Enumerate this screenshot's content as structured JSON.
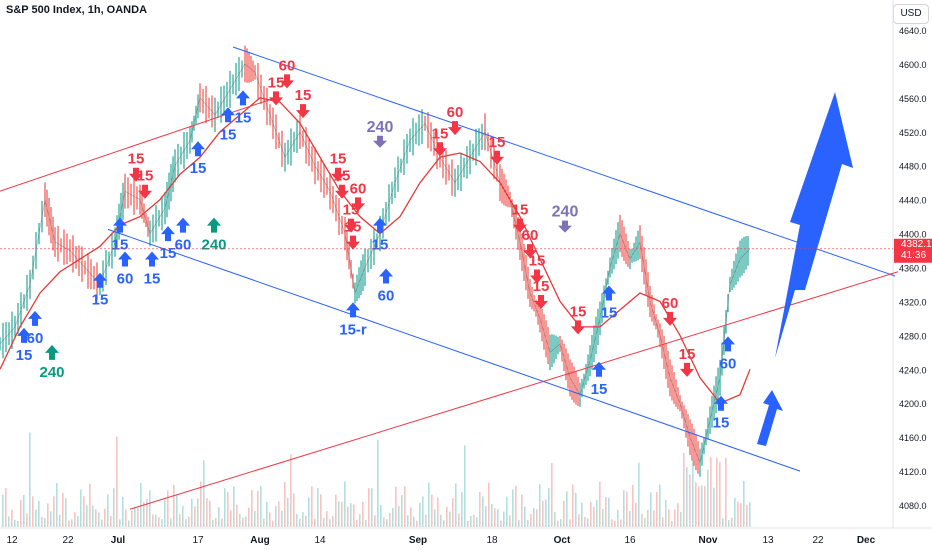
{
  "header": {
    "title": "S&P 500 Index, 1h, OANDA",
    "currency": "USD"
  },
  "price_tag": {
    "price": "4382.1",
    "countdown": "41:36",
    "color": "#f23645"
  },
  "colors": {
    "blue_channel": "#2962ff",
    "red_line": "#f23645",
    "red_ma": "#e53935",
    "up_arrow": "#2962ff",
    "down_arrow": "#f23645",
    "teal_arrow": "#089981",
    "gray_arrow": "#7e72b5",
    "candle_up": "#26a69a",
    "candle_down": "#ef5350"
  },
  "chart_data": {
    "type": "line",
    "title": "S&P 500 Index, 1h, OANDA",
    "ylim": [
      4060,
      4640
    ],
    "y_ticks": [
      4080,
      4120,
      4160,
      4200,
      4240,
      4280,
      4320,
      4360,
      4400,
      4440,
      4480,
      4520,
      4560,
      4600,
      4640
    ],
    "x_ticks": [
      "12",
      "22",
      "Jul",
      "17",
      "Aug",
      "14",
      "Sep",
      "18",
      "Oct",
      "16",
      "Nov",
      "13",
      "22",
      "Dec"
    ],
    "x_tick_pos": [
      12,
      68,
      118,
      198,
      260,
      320,
      418,
      492,
      562,
      630,
      708,
      768,
      818,
      866
    ],
    "price": [
      [
        0,
        4270
      ],
      [
        15,
        4290
      ],
      [
        30,
        4340
      ],
      [
        45,
        4440
      ],
      [
        55,
        4390
      ],
      [
        70,
        4380
      ],
      [
        85,
        4360
      ],
      [
        100,
        4340
      ],
      [
        115,
        4390
      ],
      [
        125,
        4450
      ],
      [
        140,
        4440
      ],
      [
        150,
        4400
      ],
      [
        165,
        4430
      ],
      [
        175,
        4480
      ],
      [
        190,
        4510
      ],
      [
        200,
        4560
      ],
      [
        215,
        4540
      ],
      [
        230,
        4570
      ],
      [
        245,
        4600
      ],
      [
        255,
        4590
      ],
      [
        270,
        4540
      ],
      [
        285,
        4490
      ],
      [
        300,
        4520
      ],
      [
        315,
        4480
      ],
      [
        330,
        4450
      ],
      [
        345,
        4400
      ],
      [
        355,
        4330
      ],
      [
        365,
        4360
      ],
      [
        380,
        4400
      ],
      [
        395,
        4460
      ],
      [
        410,
        4510
      ],
      [
        425,
        4530
      ],
      [
        440,
        4490
      ],
      [
        455,
        4460
      ],
      [
        470,
        4490
      ],
      [
        485,
        4520
      ],
      [
        500,
        4460
      ],
      [
        510,
        4440
      ],
      [
        520,
        4390
      ],
      [
        530,
        4330
      ],
      [
        540,
        4300
      ],
      [
        550,
        4260
      ],
      [
        560,
        4270
      ],
      [
        570,
        4230
      ],
      [
        580,
        4210
      ],
      [
        590,
        4250
      ],
      [
        600,
        4300
      ],
      [
        610,
        4360
      ],
      [
        620,
        4400
      ],
      [
        630,
        4370
      ],
      [
        640,
        4390
      ],
      [
        650,
        4320
      ],
      [
        660,
        4280
      ],
      [
        670,
        4230
      ],
      [
        680,
        4200
      ],
      [
        690,
        4160
      ],
      [
        700,
        4130
      ],
      [
        710,
        4180
      ],
      [
        720,
        4230
      ],
      [
        730,
        4340
      ],
      [
        740,
        4370
      ],
      [
        750,
        4382
      ]
    ],
    "moving_average": [
      [
        0,
        4240
      ],
      [
        20,
        4290
      ],
      [
        40,
        4330
      ],
      [
        60,
        4355
      ],
      [
        80,
        4370
      ],
      [
        100,
        4385
      ],
      [
        120,
        4410
      ],
      [
        140,
        4420
      ],
      [
        160,
        4440
      ],
      [
        180,
        4470
      ],
      [
        200,
        4490
      ],
      [
        220,
        4520
      ],
      [
        240,
        4540
      ],
      [
        260,
        4560
      ],
      [
        280,
        4555
      ],
      [
        300,
        4530
      ],
      [
        320,
        4490
      ],
      [
        340,
        4450
      ],
      [
        360,
        4420
      ],
      [
        380,
        4400
      ],
      [
        400,
        4420
      ],
      [
        420,
        4460
      ],
      [
        440,
        4490
      ],
      [
        460,
        4495
      ],
      [
        480,
        4485
      ],
      [
        500,
        4460
      ],
      [
        520,
        4420
      ],
      [
        540,
        4370
      ],
      [
        560,
        4320
      ],
      [
        580,
        4290
      ],
      [
        600,
        4290
      ],
      [
        620,
        4310
      ],
      [
        640,
        4330
      ],
      [
        660,
        4320
      ],
      [
        680,
        4280
      ],
      [
        700,
        4230
      ],
      [
        720,
        4200
      ],
      [
        740,
        4210
      ],
      [
        750,
        4240
      ]
    ],
    "lines": [
      {
        "name": "",
        "color": "blue",
        "points": [
          [
            233,
            4620
          ],
          [
            895,
            4350
          ]
        ]
      },
      {
        "name": "",
        "color": "blue",
        "points": [
          [
            108,
            4405
          ],
          [
            800,
            4120
          ]
        ]
      },
      {
        "name": "",
        "color": "red",
        "points": [
          [
            0,
            4450
          ],
          [
            275,
            4560
          ]
        ]
      },
      {
        "name": "",
        "color": "red",
        "points": [
          [
            130,
            4075
          ],
          [
            898,
            4355
          ]
        ]
      }
    ],
    "annotations": [
      {
        "text": "60",
        "type": "down",
        "x": 287,
        "y": 4590
      },
      {
        "text": "15",
        "type": "down",
        "x": 276,
        "y": 4570
      },
      {
        "text": "15",
        "type": "down",
        "x": 303,
        "y": 4555
      },
      {
        "text": "240",
        "type": "gray",
        "x": 380,
        "y": 4520
      },
      {
        "text": "60",
        "type": "down",
        "x": 455,
        "y": 4535
      },
      {
        "text": "15",
        "type": "down",
        "x": 440,
        "y": 4510
      },
      {
        "text": "15",
        "type": "down",
        "x": 497,
        "y": 4500
      },
      {
        "text": "15",
        "type": "down",
        "x": 338,
        "y": 4480
      },
      {
        "text": "15",
        "type": "down",
        "x": 342,
        "y": 4460
      },
      {
        "text": "60",
        "type": "down",
        "x": 358,
        "y": 4445
      },
      {
        "text": "15",
        "type": "down",
        "x": 351,
        "y": 4420
      },
      {
        "text": "15",
        "type": "down",
        "x": 353,
        "y": 4400
      },
      {
        "text": "240",
        "type": "gray",
        "x": 565,
        "y": 4420
      },
      {
        "text": "15",
        "type": "down",
        "x": 520,
        "y": 4420
      },
      {
        "text": "60",
        "type": "down",
        "x": 530,
        "y": 4390
      },
      {
        "text": "15",
        "type": "down",
        "x": 537,
        "y": 4360
      },
      {
        "text": "15",
        "type": "down",
        "x": 541,
        "y": 4330
      },
      {
        "text": "15",
        "type": "down",
        "x": 578,
        "y": 4300
      },
      {
        "text": "60",
        "type": "down",
        "x": 670,
        "y": 4310
      },
      {
        "text": "15",
        "type": "down",
        "x": 687,
        "y": 4250
      },
      {
        "text": "15",
        "type": "down",
        "x": 136,
        "y": 4480
      },
      {
        "text": "15",
        "type": "down",
        "x": 145,
        "y": 4460
      },
      {
        "text": "15",
        "type": "up",
        "x": 228,
        "y": 4530
      },
      {
        "text": "15",
        "type": "up",
        "x": 243,
        "y": 4550
      },
      {
        "text": "15",
        "type": "up",
        "x": 198,
        "y": 4490
      },
      {
        "text": "60",
        "type": "up",
        "x": 183,
        "y": 4400
      },
      {
        "text": "240",
        "type": "teal",
        "x": 214,
        "y": 4400
      },
      {
        "text": "15",
        "type": "up",
        "x": 120,
        "y": 4400
      },
      {
        "text": "15",
        "type": "up",
        "x": 168,
        "y": 4390
      },
      {
        "text": "60",
        "type": "up",
        "x": 125,
        "y": 4360
      },
      {
        "text": "15",
        "type": "up",
        "x": 152,
        "y": 4360
      },
      {
        "text": "15",
        "type": "up",
        "x": 100,
        "y": 4335
      },
      {
        "text": "60",
        "type": "up",
        "x": 35,
        "y": 4290
      },
      {
        "text": "15",
        "type": "up",
        "x": 24,
        "y": 4270
      },
      {
        "text": "240",
        "type": "teal",
        "x": 52,
        "y": 4250
      },
      {
        "text": "60",
        "type": "up",
        "x": 386,
        "y": 4340
      },
      {
        "text": "15",
        "type": "up",
        "x": 380,
        "y": 4400
      },
      {
        "text": "15-r",
        "type": "up",
        "x": 353,
        "y": 4300
      },
      {
        "text": "15",
        "type": "up",
        "x": 609,
        "y": 4320
      },
      {
        "text": "15",
        "type": "up",
        "x": 599,
        "y": 4230
      },
      {
        "text": "60",
        "type": "up",
        "x": 728,
        "y": 4260
      },
      {
        "text": "15",
        "type": "up",
        "x": 721,
        "y": 4190
      }
    ]
  }
}
